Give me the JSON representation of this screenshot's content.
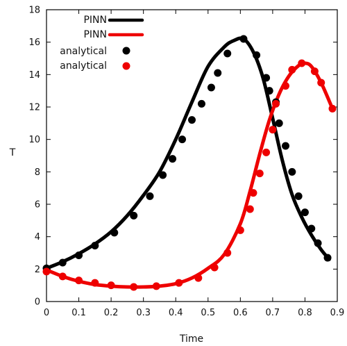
{
  "chart_data": {
    "type": "line",
    "title": "",
    "xlabel": "Time",
    "ylabel": "T",
    "xlim": [
      0,
      0.9
    ],
    "ylim": [
      0,
      18
    ],
    "xticks": [
      0,
      0.1,
      0.2,
      0.3,
      0.4,
      0.5,
      0.6,
      0.7,
      0.8,
      0.9
    ],
    "yticks": [
      0,
      2,
      4,
      6,
      8,
      10,
      12,
      14,
      16,
      18
    ],
    "grid": false,
    "legend_position": "top-left",
    "series": [
      {
        "name": "PINN",
        "kind": "line",
        "color": "#000000",
        "x": [
          0,
          0.05,
          0.1,
          0.15,
          0.2,
          0.25,
          0.3,
          0.35,
          0.4,
          0.45,
          0.5,
          0.55,
          0.58,
          0.61,
          0.64,
          0.67,
          0.7,
          0.73,
          0.76,
          0.79,
          0.82,
          0.85,
          0.875
        ],
        "y": [
          2.05,
          2.45,
          2.95,
          3.55,
          4.3,
          5.3,
          6.55,
          8.0,
          10.0,
          12.3,
          14.5,
          15.7,
          16.1,
          16.2,
          15.4,
          13.8,
          11.3,
          8.7,
          6.6,
          5.2,
          4.1,
          3.2,
          2.6
        ]
      },
      {
        "name": "PINN",
        "kind": "line",
        "color": "#ee0000",
        "x": [
          0,
          0.05,
          0.1,
          0.15,
          0.2,
          0.25,
          0.3,
          0.35,
          0.4,
          0.45,
          0.5,
          0.55,
          0.6,
          0.63,
          0.66,
          0.69,
          0.72,
          0.75,
          0.78,
          0.8,
          0.82,
          0.85,
          0.885
        ],
        "y": [
          1.95,
          1.55,
          1.25,
          1.05,
          0.95,
          0.9,
          0.9,
          0.95,
          1.1,
          1.45,
          2.05,
          2.9,
          4.8,
          6.8,
          9.1,
          11.2,
          12.8,
          13.9,
          14.55,
          14.7,
          14.5,
          13.5,
          11.9
        ]
      },
      {
        "name": "analytical",
        "kind": "points",
        "color": "#000000",
        "x": [
          0,
          0.05,
          0.1,
          0.15,
          0.21,
          0.27,
          0.32,
          0.36,
          0.39,
          0.42,
          0.45,
          0.48,
          0.51,
          0.53,
          0.56,
          0.61,
          0.65,
          0.68,
          0.69,
          0.71,
          0.72,
          0.74,
          0.76,
          0.78,
          0.8,
          0.82,
          0.84,
          0.87
        ],
        "y": [
          2.05,
          2.4,
          2.85,
          3.45,
          4.25,
          5.3,
          6.5,
          7.8,
          8.8,
          10.0,
          11.2,
          12.2,
          13.2,
          14.1,
          15.3,
          16.2,
          15.2,
          13.8,
          13.0,
          12.3,
          11.0,
          9.6,
          8.0,
          6.5,
          5.5,
          4.5,
          3.6,
          2.7
        ]
      },
      {
        "name": "analytical",
        "kind": "points",
        "color": "#ee0000",
        "x": [
          0,
          0.05,
          0.1,
          0.15,
          0.2,
          0.27,
          0.34,
          0.41,
          0.47,
          0.52,
          0.56,
          0.6,
          0.63,
          0.64,
          0.66,
          0.68,
          0.7,
          0.71,
          0.74,
          0.76,
          0.79,
          0.83,
          0.85,
          0.885
        ],
        "y": [
          1.85,
          1.55,
          1.3,
          1.15,
          1.0,
          0.9,
          0.95,
          1.15,
          1.45,
          2.1,
          3.0,
          4.4,
          5.7,
          6.7,
          7.9,
          9.2,
          10.6,
          12.2,
          13.3,
          14.3,
          14.7,
          14.2,
          13.5,
          11.9
        ]
      }
    ]
  }
}
